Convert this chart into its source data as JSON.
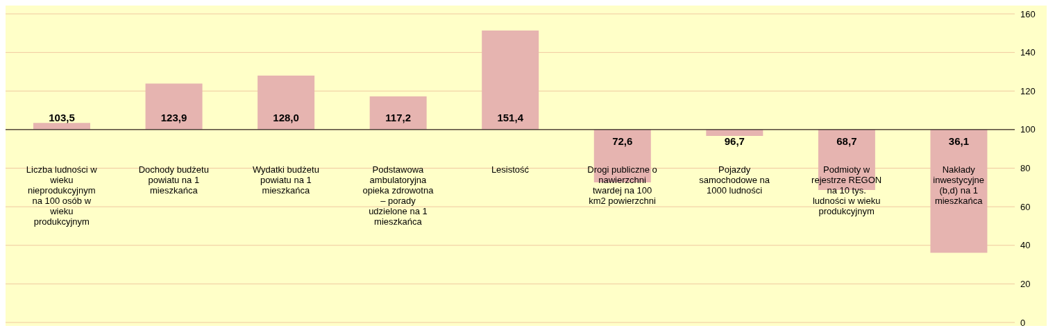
{
  "chart_data": {
    "type": "bar",
    "categories": [
      "Liczba ludności w wieku nieprodukcyjnym na 100 osób w wieku produkcyjnym",
      "Dochody budżetu powiatu na 1 mieszkańca",
      "Wydatki budżetu powiatu na 1 mieszkańca",
      "Podstawowa ambulatoryjna opieka zdrowotna – porady udzielone na 1 mieszkańca",
      "Lesistość",
      "Drogi publiczne o nawierzchni twardej na 100 km2 powierzchni",
      "Pojazdy samochodowe na 1000 ludności",
      "Podmioty w rejestrze REGON na 10 tys. ludności w wieku produkcyjnym",
      "Nakłady inwestycyjne (b,d) na 1 mieszkańca"
    ],
    "base": [
      100,
      100,
      100,
      100,
      100,
      100,
      100,
      100,
      100
    ],
    "values": [
      3.5,
      23.9,
      28.0,
      17.2,
      51.4,
      -27.4,
      -3.3,
      -31.3,
      -63.9
    ],
    "value_labels": [
      "103,5",
      "123,9",
      "128,0",
      "117,2",
      "151,4",
      "72,6",
      "96,7",
      "68,7",
      "36,1"
    ],
    "color": "#e6b4b0",
    "ylim": [
      0,
      160
    ],
    "yticks": [
      0,
      20,
      40,
      60,
      80,
      100,
      120,
      140,
      160
    ],
    "ref_lines": [
      {
        "axis": "y",
        "value": 100,
        "color": "#000000"
      }
    ],
    "grid": "y"
  }
}
